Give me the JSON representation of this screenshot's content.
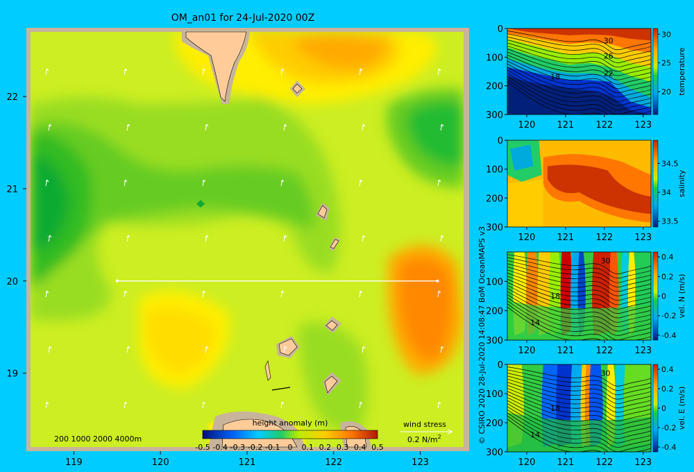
{
  "title": "OM_an01 for 24-Jul-2020 00Z",
  "side_text": "© CSIRO 2020   28-Jul-2020 14:08:47 BoM OceanMAPS v3",
  "colors": {
    "background": "#00ccff",
    "land": "#ffcc99",
    "frame": "#c8b49b",
    "transect": "#ffffff"
  },
  "map": {
    "x_ticks": [
      "119",
      "120",
      "121",
      "122",
      "123"
    ],
    "y_ticks": [
      "22",
      "21",
      "20",
      "19"
    ],
    "depth_legend": "200  1000  2000  4000m",
    "colorbar": {
      "label": "height anomaly (m)",
      "ticks": [
        "-0.5",
        "-0.4",
        "-0.3",
        "-0.2",
        "-0.1",
        "0",
        "0.1",
        "0.2",
        "0.3",
        "0.4",
        "0.5"
      ]
    },
    "wind_stress": {
      "label": "wind stress",
      "value_label": "0.2 N/m",
      "sup": "2"
    }
  },
  "chart_data": [
    {
      "type": "heatmap",
      "title": "",
      "variable": "height anomaly (m)",
      "xlim": [
        118.5,
        123.5
      ],
      "ylim": [
        18.2,
        22.7
      ],
      "x_ticks": [
        119,
        120,
        121,
        122,
        123
      ],
      "y_ticks": [
        19,
        20,
        21,
        22
      ],
      "colorbar_range": [
        -0.5,
        0.5
      ],
      "transect": {
        "lat": 20,
        "lon_start": 119.5,
        "lon_end": 123.2
      },
      "features": [
        {
          "name": "west low",
          "lon": 118.8,
          "lat": 20.9,
          "value": -0.12
        },
        {
          "name": "northeast low",
          "lon": 123.2,
          "lat": 21.7,
          "value": -0.12
        },
        {
          "name": "east high",
          "lon": 122.95,
          "lat": 20.0,
          "value": 0.28
        },
        {
          "name": "north high",
          "lon": 122.1,
          "lat": 22.35,
          "value": 0.2
        }
      ]
    },
    {
      "type": "heatmap",
      "variable": "temperature",
      "colorbar_label": "temperature",
      "x_ticks": [
        "120",
        "121",
        "122",
        "123"
      ],
      "y_ticks": [
        "0",
        "100",
        "200",
        "300"
      ],
      "colorbar_ticks": [
        "30",
        "25",
        "20"
      ],
      "colorbar_range": [
        16,
        31
      ],
      "contour_labels": [
        "30",
        "26",
        "22",
        "18"
      ],
      "xlim": [
        119.5,
        123.2
      ],
      "ylim": [
        300,
        0
      ]
    },
    {
      "type": "heatmap",
      "variable": "salinity",
      "colorbar_label": "salinity",
      "x_ticks": [
        "120",
        "121",
        "122",
        "123"
      ],
      "y_ticks": [
        "0",
        "100",
        "200",
        "300"
      ],
      "colorbar_ticks": [
        "34.5",
        "34",
        "33.5"
      ],
      "colorbar_range": [
        33.4,
        34.9
      ],
      "xlim": [
        119.5,
        123.2
      ],
      "ylim": [
        300,
        0
      ]
    },
    {
      "type": "heatmap",
      "variable": "vel. N (m/s)",
      "colorbar_label": "vel. N  (m/s)",
      "x_ticks": [
        "120",
        "121",
        "122",
        "123"
      ],
      "y_ticks": [
        "100",
        "200",
        "300"
      ],
      "colorbar_ticks": [
        "0.4",
        "0.2",
        "0",
        "-0.2",
        "-0.4"
      ],
      "colorbar_range": [
        -0.45,
        0.45
      ],
      "contour_labels": [
        "30",
        "18",
        "14"
      ],
      "xlim": [
        119.5,
        123.2
      ],
      "ylim": [
        300,
        0
      ]
    },
    {
      "type": "heatmap",
      "variable": "vel. E (m/s)",
      "colorbar_label": "vel. E  (m/s)",
      "x_ticks": [
        "120",
        "121",
        "122",
        "123"
      ],
      "y_ticks": [
        "0",
        "100",
        "200",
        "300"
      ],
      "colorbar_ticks": [
        "0.4",
        "0.2",
        "0",
        "-0.2",
        "-0.4"
      ],
      "colorbar_range": [
        -0.45,
        0.45
      ],
      "contour_labels": [
        "30",
        "18",
        "14"
      ],
      "xlim": [
        119.5,
        123.2
      ],
      "ylim": [
        300,
        0
      ]
    }
  ]
}
